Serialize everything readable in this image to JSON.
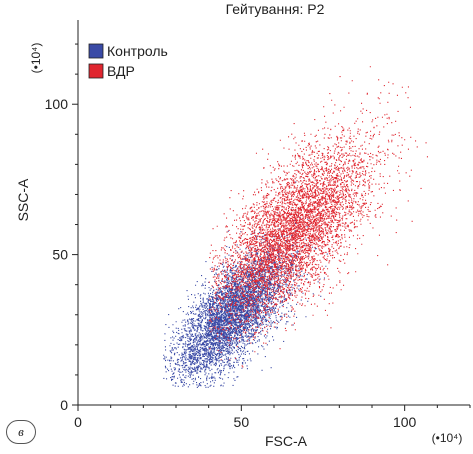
{
  "panel_label": "в",
  "chart_data": {
    "type": "scatter",
    "title": "Гейтування: P2",
    "xlabel": "FSC-A",
    "ylabel": "SSC-A",
    "x_unit": "(•10⁴)",
    "y_unit": "(•10⁴)",
    "xlim": [
      0,
      120
    ],
    "ylim": [
      0,
      128
    ],
    "x_ticks": [
      0,
      50,
      100
    ],
    "y_ticks": [
      0,
      50,
      100
    ],
    "grid": false,
    "legend_position": "top-left",
    "series": [
      {
        "name": "Контроль",
        "color": "#3a4aa6",
        "region_x": [
          26,
          95
        ],
        "region_y": [
          6,
          80
        ],
        "center": [
          47,
          30
        ]
      },
      {
        "name": "ВДР",
        "color": "#e0262f",
        "region_x": [
          40,
          108
        ],
        "region_y": [
          12,
          116
        ],
        "center": [
          66,
          58
        ]
      }
    ]
  }
}
